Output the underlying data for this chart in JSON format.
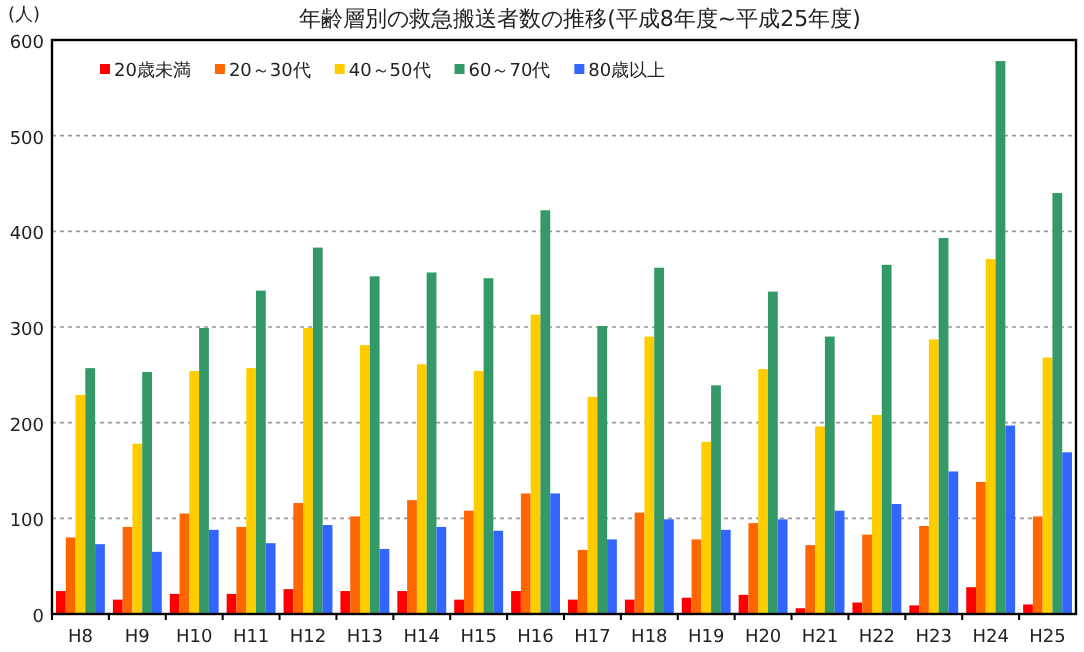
{
  "chart_data": {
    "type": "bar",
    "title": "年齢層別の救急搬送者数の推移(平成8年度~平成25年度)",
    "ylabel": "(人)",
    "categories": [
      "H8",
      "H9",
      "H10",
      "H11",
      "H12",
      "H13",
      "H14",
      "H15",
      "H16",
      "H17",
      "H18",
      "H19",
      "H20",
      "H21",
      "H22",
      "H23",
      "H24",
      "H25"
    ],
    "series": [
      {
        "name": "20歳未満",
        "color": "#ff0000",
        "values": [
          24,
          15,
          21,
          21,
          26,
          24,
          24,
          15,
          24,
          15,
          15,
          17,
          20,
          6,
          12,
          9,
          28,
          10
        ]
      },
      {
        "name": "20～30代",
        "color": "#ff6600",
        "values": [
          80,
          91,
          105,
          91,
          116,
          102,
          119,
          108,
          126,
          67,
          106,
          78,
          95,
          72,
          83,
          92,
          138,
          102
        ]
      },
      {
        "name": "40～50代",
        "color": "#ffcc00",
        "values": [
          229,
          178,
          254,
          257,
          299,
          281,
          261,
          254,
          313,
          227,
          290,
          180,
          256,
          196,
          208,
          287,
          371,
          268
        ]
      },
      {
        "name": "60～70代",
        "color": "#339966",
        "values": [
          257,
          253,
          299,
          338,
          383,
          353,
          357,
          351,
          422,
          301,
          362,
          239,
          337,
          290,
          365,
          393,
          578,
          440
        ]
      },
      {
        "name": "80歳以上",
        "color": "#3366ff",
        "values": [
          73,
          65,
          88,
          74,
          93,
          68,
          91,
          87,
          126,
          78,
          99,
          88,
          99,
          108,
          115,
          149,
          197,
          169
        ]
      }
    ],
    "ylim": [
      0,
      600
    ],
    "yticks": [
      0,
      100,
      200,
      300,
      400,
      500,
      600
    ],
    "grid": "y",
    "legend": "top left"
  }
}
